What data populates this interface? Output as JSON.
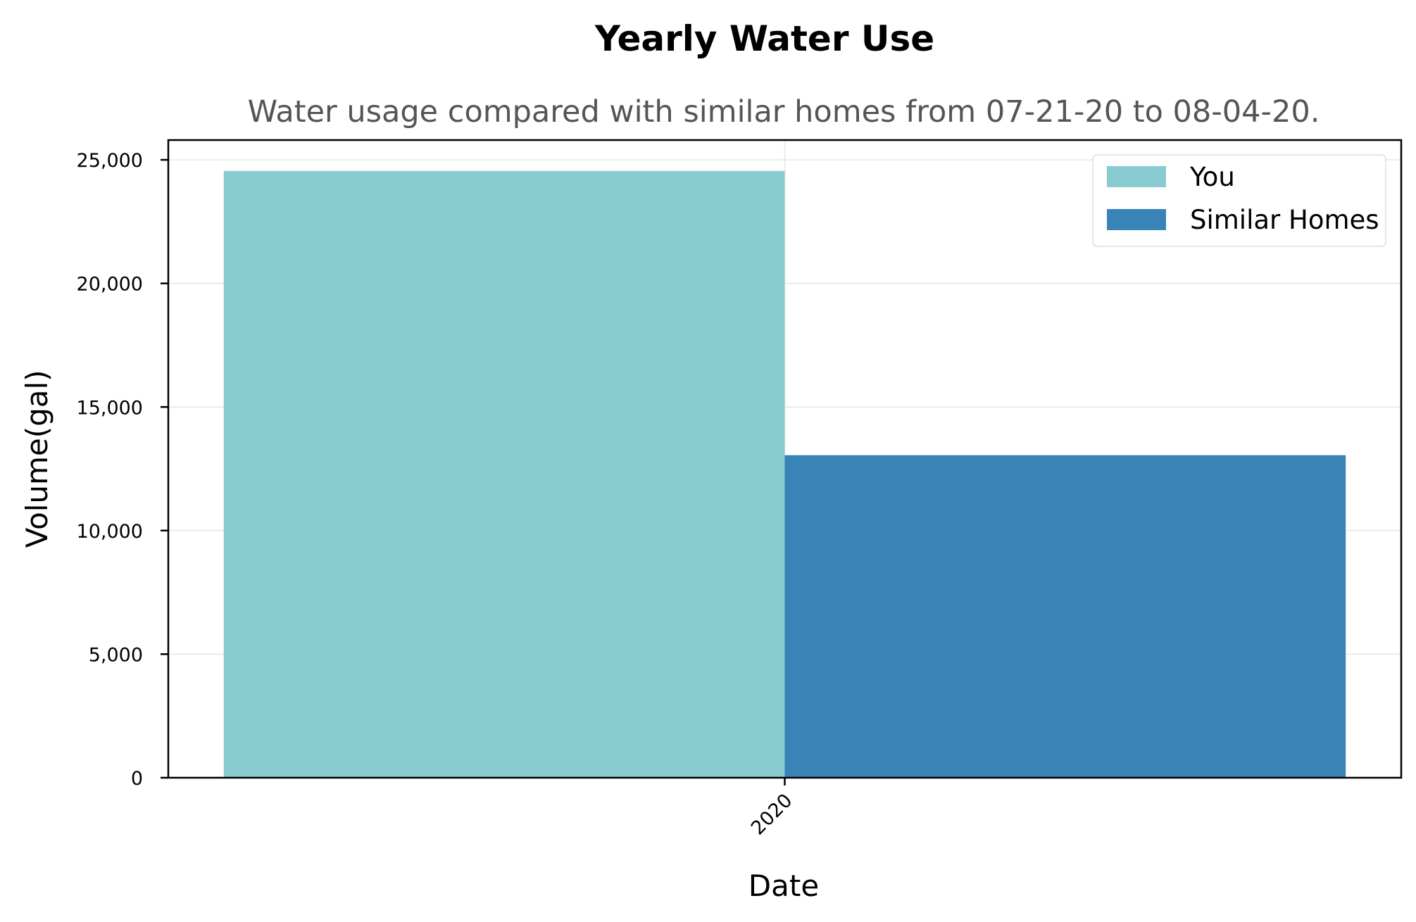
{
  "chart_data": {
    "type": "bar",
    "title": "Yearly Water Use",
    "subtitle": "Water usage compared with similar homes from 07-21-20 to 08-04-20.",
    "xlabel": "Date",
    "ylabel": "Volume(gal)",
    "categories": [
      "2020"
    ],
    "series": [
      {
        "name": "You",
        "values": [
          24550
        ],
        "color": "#88cbd0"
      },
      {
        "name": "Similar Homes",
        "values": [
          13050
        ],
        "color": "#3984b6"
      }
    ],
    "ylim": [
      0,
      25800
    ],
    "yticks": [
      0,
      5000,
      10000,
      15000,
      20000,
      25000
    ],
    "ytick_labels": [
      "0",
      "5,000",
      "10,000",
      "15,000",
      "20,000",
      "25,000"
    ],
    "grid": true,
    "legend_position": "top-right"
  }
}
